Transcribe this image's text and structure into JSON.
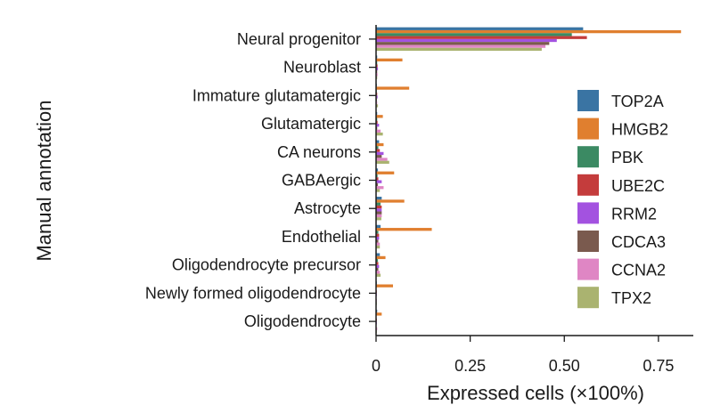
{
  "chart_data": {
    "type": "bar",
    "orientation": "horizontal",
    "categories": [
      "Neural progenitor",
      "Neuroblast",
      "Immature glutamatergic",
      "Glutamatergic",
      "CA neurons",
      "GABAergic",
      "Astrocyte",
      "Endothelial",
      "Oligodendrocyte precursor",
      "Newly formed oligodendrocyte",
      "Oligodendrocyte"
    ],
    "series": [
      {
        "name": "TOP2A",
        "color": "#3a74a3",
        "values": [
          0.55,
          0.003,
          0.002,
          0.003,
          0.008,
          0.005,
          0.015,
          0.012,
          0.01,
          0.002,
          0.003
        ]
      },
      {
        "name": "HMGB2",
        "color": "#e07f2f",
        "values": [
          0.81,
          0.07,
          0.088,
          0.018,
          0.02,
          0.048,
          0.075,
          0.148,
          0.025,
          0.045,
          0.015
        ]
      },
      {
        "name": "PBK",
        "color": "#3b8a63",
        "values": [
          0.52,
          0.003,
          0.002,
          0.003,
          0.006,
          0.004,
          0.012,
          0.006,
          0.005,
          0.001,
          0.001
        ]
      },
      {
        "name": "UBE2C",
        "color": "#c43c3c",
        "values": [
          0.56,
          0.004,
          0.003,
          0.004,
          0.01,
          0.006,
          0.015,
          0.008,
          0.006,
          0.002,
          0.002
        ]
      },
      {
        "name": "RRM2",
        "color": "#a352e0",
        "values": [
          0.48,
          0.005,
          0.004,
          0.008,
          0.02,
          0.015,
          0.015,
          0.008,
          0.008,
          0.002,
          0.002
        ]
      },
      {
        "name": "CDCA3",
        "color": "#7a5a4e",
        "values": [
          0.46,
          0.003,
          0.002,
          0.003,
          0.015,
          0.005,
          0.015,
          0.006,
          0.006,
          0.001,
          0.001
        ]
      },
      {
        "name": "CCNA2",
        "color": "#df86c4",
        "values": [
          0.45,
          0.004,
          0.003,
          0.012,
          0.03,
          0.02,
          0.015,
          0.01,
          0.01,
          0.002,
          0.003
        ]
      },
      {
        "name": "TPX2",
        "color": "#aab370",
        "values": [
          0.44,
          0.003,
          0.005,
          0.018,
          0.035,
          0.01,
          0.014,
          0.01,
          0.012,
          0.002,
          0.002
        ]
      }
    ],
    "xlabel": "Expressed cells (×100%)",
    "ylabel": "Manual annotation",
    "xlim": [
      0,
      0.8
    ],
    "xticks": [
      0,
      0.25,
      0.5,
      0.75
    ],
    "xtick_labels": [
      "0",
      "0.25",
      "0.50",
      "0.75"
    ],
    "grid": false,
    "legend_position": "right"
  }
}
